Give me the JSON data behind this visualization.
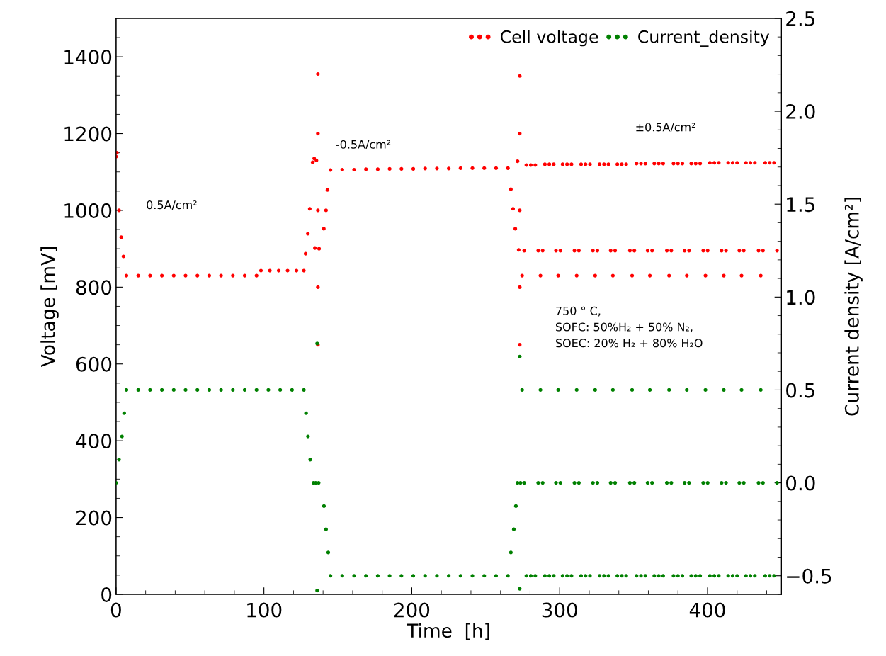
{
  "chart_data": {
    "type": "scatter",
    "xlabel": "Time  [h]",
    "ylabel": "Voltage [mV]",
    "y2label": "Current density [A/cm²]",
    "xlim": [
      0,
      450
    ],
    "xticks": [
      0,
      100,
      200,
      300,
      400
    ],
    "ylim": [
      0,
      1500
    ],
    "yticks": [
      0,
      200,
      400,
      600,
      800,
      1000,
      1200,
      1400
    ],
    "y2lim": [
      -0.6,
      2.5
    ],
    "y2ticks": [
      {
        "value": -0.5,
        "label": "−0.5"
      },
      {
        "value": 0,
        "label": "0.0"
      },
      0.5,
      {
        "value": 1,
        "label": "1.0"
      },
      1.5,
      {
        "value": 2,
        "label": "2.0"
      },
      2.5
    ],
    "legend": "top right",
    "marker": "circle",
    "grid": false,
    "annotations": [
      "0.5A/cm²",
      "-0.5A/cm²",
      "±0.5A/cm²",
      "750 ° C,\nSOFC: 50%H₂ + 50% N₂,\nSOEC: 20% H₂ + 80% H₂O"
    ],
    "series": [
      {
        "name": "Cell voltage",
        "color": "#ff0000",
        "x": [
          0,
          0.5,
          2,
          3.5,
          5,
          7,
          15,
          23,
          31,
          39,
          47,
          55,
          63,
          71,
          79,
          87,
          95,
          98,
          104,
          110,
          116,
          122,
          127,
          128.2,
          129.7,
          131,
          133,
          134,
          134.5,
          135.5,
          136.5,
          136.5,
          136.5,
          136.5,
          136.5,
          137.3,
          140.5,
          142,
          143,
          145,
          153,
          161,
          169,
          177,
          185,
          193,
          201,
          209,
          217,
          225,
          233,
          241,
          249,
          257,
          265,
          267,
          268.5,
          270,
          271.5,
          272.3,
          273,
          273,
          273,
          273,
          273,
          274.6,
          276,
          277.5,
          280.5,
          283.5,
          285.5,
          287,
          288.5,
          290,
          293,
          296,
          297.5,
          299,
          300.5,
          302,
          305,
          308,
          310,
          311.5,
          313,
          314.5,
          317.5,
          320.5,
          322.5,
          324,
          325.5,
          327,
          330,
          333,
          334.5,
          336,
          337.5,
          339,
          342,
          345,
          347.5,
          349,
          350.5,
          352,
          355,
          358,
          359.5,
          361,
          362.5,
          364,
          367,
          370,
          372.5,
          374,
          375.5,
          377,
          380,
          383,
          384.5,
          386,
          387.5,
          389,
          392,
          395,
          397.1,
          398.6,
          400.1,
          401.6,
          404.6,
          407.6,
          409.5,
          411,
          412.5,
          414,
          417,
          420,
          421.5,
          423,
          424.5,
          426,
          429,
          432,
          434.5,
          436,
          437.5,
          439,
          442,
          445,
          447
        ],
        "values": [
          1140,
          1150,
          1000,
          930,
          880,
          830,
          830,
          830,
          830,
          830,
          830,
          830,
          830,
          830,
          830,
          830,
          830,
          843,
          843,
          843,
          843,
          843,
          843,
          887,
          939,
          1004,
          1125,
          1135,
          902,
          1130,
          1355,
          1200,
          1000,
          800,
          650,
          900,
          952,
          1000,
          1053,
          1105,
          1106,
          1106,
          1107,
          1107,
          1108,
          1108,
          1108,
          1109,
          1109,
          1109,
          1110,
          1110,
          1110,
          1110,
          1110,
          1055,
          1004,
          952,
          1128,
          897,
          1350,
          1200,
          1000,
          800,
          650,
          830,
          895,
          1118,
          1118,
          1118,
          895,
          830,
          895,
          1120,
          1120,
          1120,
          895,
          830,
          895,
          1120,
          1120,
          1120,
          895,
          830,
          895,
          1120,
          1120,
          1120,
          895,
          830,
          895,
          1120,
          1120,
          1120,
          895,
          830,
          895,
          1120,
          1120,
          1120,
          895,
          830,
          895,
          1122,
          1122,
          1122,
          895,
          830,
          895,
          1122,
          1122,
          1122,
          895,
          830,
          895,
          1122,
          1122,
          1122,
          895,
          830,
          895,
          1122,
          1122,
          1122,
          895,
          830,
          895,
          1124,
          1124,
          1124,
          895,
          830,
          895,
          1124,
          1124,
          1124,
          895,
          830,
          895,
          1124,
          1124,
          1124,
          895,
          830,
          895,
          1124,
          1124,
          1124,
          895
        ]
      },
      {
        "name": "Current_density",
        "color": "#008000",
        "axis": "y2",
        "x": [
          0,
          2,
          4,
          5.5,
          7,
          15,
          23,
          31,
          39,
          47,
          55,
          63,
          71,
          79,
          87,
          95,
          103,
          111,
          119,
          127,
          128.5,
          129.8,
          131.3,
          133.5,
          135,
          136,
          136,
          137,
          140.6,
          142,
          143.5,
          145,
          153,
          161,
          169,
          177,
          185,
          193,
          201,
          209,
          217,
          225,
          233,
          241,
          249,
          257,
          265,
          267,
          269,
          270.4,
          271.5,
          273,
          273,
          273.5,
          274.6,
          276,
          277.5,
          280.5,
          283.5,
          285.5,
          287,
          288.5,
          290,
          293,
          296,
          297.5,
          299,
          300.5,
          302,
          305,
          308,
          310,
          311.5,
          313,
          314.5,
          317.5,
          320.5,
          322.5,
          324,
          325.5,
          327,
          330,
          333,
          334.5,
          336,
          337.5,
          339,
          342,
          345,
          347.5,
          349,
          350.5,
          352,
          355,
          358,
          359.5,
          361,
          362.5,
          364,
          367,
          370,
          372.5,
          374,
          375.5,
          377,
          380,
          383,
          384.5,
          386,
          387.5,
          389,
          392,
          395,
          397.1,
          398.6,
          400.1,
          401.6,
          404.6,
          407.6,
          409.5,
          411,
          412.5,
          414,
          417,
          420,
          421.5,
          423,
          424.5,
          426,
          429,
          432,
          434.5,
          436,
          437.5,
          439,
          442,
          445,
          447
        ],
        "values": [
          0.0,
          0.125,
          0.25,
          0.375,
          0.5,
          0.5,
          0.5,
          0.5,
          0.5,
          0.5,
          0.5,
          0.5,
          0.5,
          0.5,
          0.5,
          0.5,
          0.5,
          0.5,
          0.5,
          0.5,
          0.375,
          0.25,
          0.125,
          0.0,
          0.0,
          0.75,
          -0.58,
          0.0,
          -0.125,
          -0.25,
          -0.375,
          -0.5,
          -0.5,
          -0.5,
          -0.5,
          -0.5,
          -0.5,
          -0.5,
          -0.5,
          -0.5,
          -0.5,
          -0.5,
          -0.5,
          -0.5,
          -0.5,
          -0.5,
          -0.5,
          -0.375,
          -0.25,
          -0.125,
          0.0,
          0.68,
          -0.57,
          0.0,
          0.5,
          0.0,
          -0.5,
          -0.5,
          -0.5,
          0.0,
          0.5,
          0.0,
          -0.5,
          -0.5,
          -0.5,
          0.0,
          0.5,
          0.0,
          -0.5,
          -0.5,
          -0.5,
          0.0,
          0.5,
          0.0,
          -0.5,
          -0.5,
          -0.5,
          0.0,
          0.5,
          0.0,
          -0.5,
          -0.5,
          -0.5,
          0.0,
          0.5,
          0.0,
          -0.5,
          -0.5,
          -0.5,
          0.0,
          0.5,
          0.0,
          -0.5,
          -0.5,
          -0.5,
          0.0,
          0.5,
          0.0,
          -0.5,
          -0.5,
          -0.5,
          0.0,
          0.5,
          0.0,
          -0.5,
          -0.5,
          -0.5,
          0.0,
          0.5,
          0.0,
          -0.5,
          -0.5,
          -0.5,
          0.0,
          0.5,
          0.0,
          -0.5,
          -0.5,
          -0.5,
          0.0,
          0.5,
          0.0,
          -0.5,
          -0.5,
          -0.5,
          0.0,
          0.5,
          0.0,
          -0.5,
          -0.5,
          -0.5,
          0.0,
          0.5,
          0.0,
          -0.5,
          -0.5,
          -0.5,
          0.0
        ]
      }
    ]
  }
}
